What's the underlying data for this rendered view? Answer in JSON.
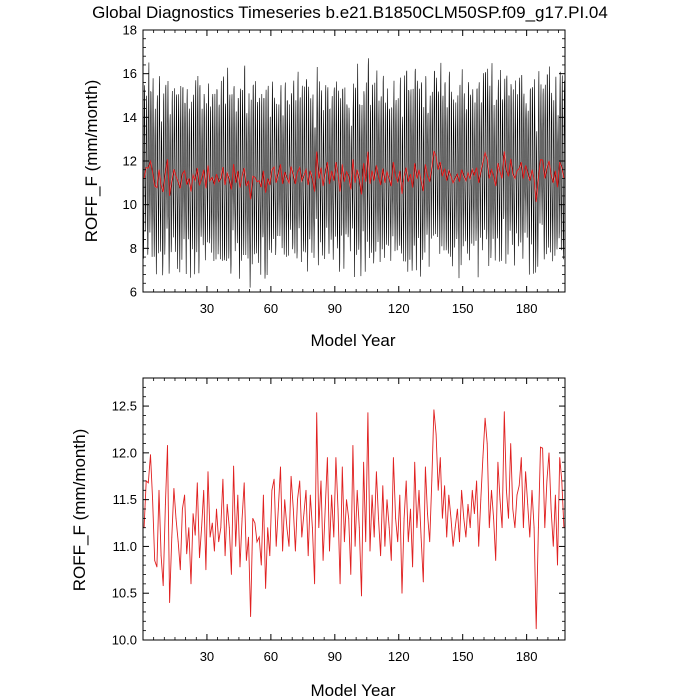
{
  "title": "Global Diagnostics Timeseries b.e21.B1850CLM50SP.f09_g17.PI.04",
  "colors": {
    "monthly": "#000000",
    "annual": "#e02020",
    "frame": "#000000"
  },
  "chart_data": [
    {
      "type": "line",
      "name": "monthly-and-annual",
      "xlabel": "Model Year",
      "ylabel": "ROFF_F (mm/month)",
      "xlim": [
        0,
        198
      ],
      "ylim": [
        6,
        18
      ],
      "x_ticks": [
        30,
        60,
        90,
        120,
        150,
        180
      ],
      "y_ticks": [
        6,
        8,
        10,
        12,
        14,
        16,
        18
      ],
      "y_tick_labels": [
        "6",
        "8",
        "10",
        "12",
        "14",
        "16",
        "18"
      ],
      "series": [
        {
          "name": "monthly",
          "color": "#000000",
          "start_year": 0,
          "steps_per_year": 12,
          "annual_cycle_offsets": [
            -0.4,
            -1.2,
            -2.2,
            -3.3,
            -2.6,
            -1.2,
            0.4,
            2.2,
            3.3,
            3.6,
            2.2,
            0.9
          ],
          "note": "monthly values = annual mean + seasonal offset + variability"
        },
        {
          "name": "annual",
          "color": "#e02020",
          "ref": "annual_mean"
        }
      ]
    },
    {
      "type": "line",
      "name": "annual-mean",
      "xlabel": "Model Year",
      "ylabel": "ROFF_F (mm/month)",
      "xlim": [
        0,
        198
      ],
      "ylim": [
        10.0,
        12.8
      ],
      "x_ticks": [
        30,
        60,
        90,
        120,
        150,
        180
      ],
      "y_ticks": [
        10.0,
        10.5,
        11.0,
        11.5,
        12.0,
        12.5
      ],
      "y_tick_labels": [
        "10.0",
        "10.5",
        "11.0",
        "11.5",
        "12.0",
        "12.5"
      ],
      "series": [
        {
          "name": "annual",
          "color": "#e02020",
          "ref": "annual_mean"
        }
      ]
    }
  ],
  "annual_mean": {
    "start_year": 1,
    "values": [
      11.2,
      11.7,
      11.68,
      11.98,
      11.5,
      10.85,
      10.78,
      11.6,
      10.9,
      10.58,
      11.45,
      12.08,
      10.4,
      11.1,
      11.62,
      11.3,
      11.05,
      10.75,
      11.4,
      11.55,
      10.92,
      11.2,
      10.6,
      11.35,
      11.12,
      11.68,
      10.88,
      11.2,
      11.6,
      10.75,
      11.8,
      11.1,
      11.25,
      10.95,
      11.4,
      11.05,
      11.2,
      11.72,
      10.9,
      11.45,
      11.2,
      10.7,
      11.86,
      11.0,
      11.55,
      10.78,
      11.3,
      11.68,
      10.85,
      11.1,
      10.25,
      11.3,
      11.25,
      11.05,
      11.1,
      10.8,
      11.55,
      10.55,
      11.2,
      10.9,
      11.6,
      11.72,
      11.0,
      11.4,
      11.85,
      10.95,
      11.5,
      11.2,
      11.0,
      11.75,
      11.4,
      10.95,
      11.5,
      11.7,
      11.1,
      11.35,
      11.6,
      10.9,
      11.55,
      11.2,
      10.6,
      12.43,
      11.2,
      11.7,
      10.85,
      11.4,
      11.95,
      10.95,
      11.55,
      11.1,
      11.95,
      11.4,
      10.6,
      11.85,
      11.05,
      11.5,
      11.3,
      10.7,
      12.08,
      11.0,
      11.6,
      11.2,
      10.47,
      11.9,
      11.05,
      12.43,
      10.95,
      11.55,
      11.1,
      11.8,
      11.3,
      10.9,
      11.65,
      11.0,
      11.5,
      11.2,
      10.85,
      11.95,
      11.3,
      11.05,
      11.55,
      10.5,
      11.3,
      11.7,
      11.05,
      11.4,
      10.78,
      11.9,
      11.2,
      11.6,
      11.1,
      10.62,
      11.85,
      11.35,
      11.05,
      11.7,
      12.46,
      12.2,
      11.6,
      11.95,
      11.3,
      11.65,
      11.1,
      11.55,
      11.3,
      11.0,
      11.2,
      11.4,
      11.05,
      11.6,
      11.3,
      11.1,
      11.45,
      11.2,
      11.6,
      11.35,
      11.7,
      11.0,
      11.5,
      11.95,
      12.37,
      12.1,
      11.2,
      11.6,
      11.3,
      10.85,
      11.9,
      11.5,
      11.2,
      12.44,
      11.6,
      11.3,
      12.1,
      11.4,
      11.2,
      11.55,
      11.65,
      11.95,
      11.2,
      11.8,
      11.45,
      11.1,
      11.6,
      11.2,
      10.12,
      11.2,
      12.06,
      12.05,
      11.2,
      11.7,
      12.0,
      11.4,
      11.0,
      11.55,
      10.8,
      11.95,
      11.7,
      11.2
    ]
  }
}
